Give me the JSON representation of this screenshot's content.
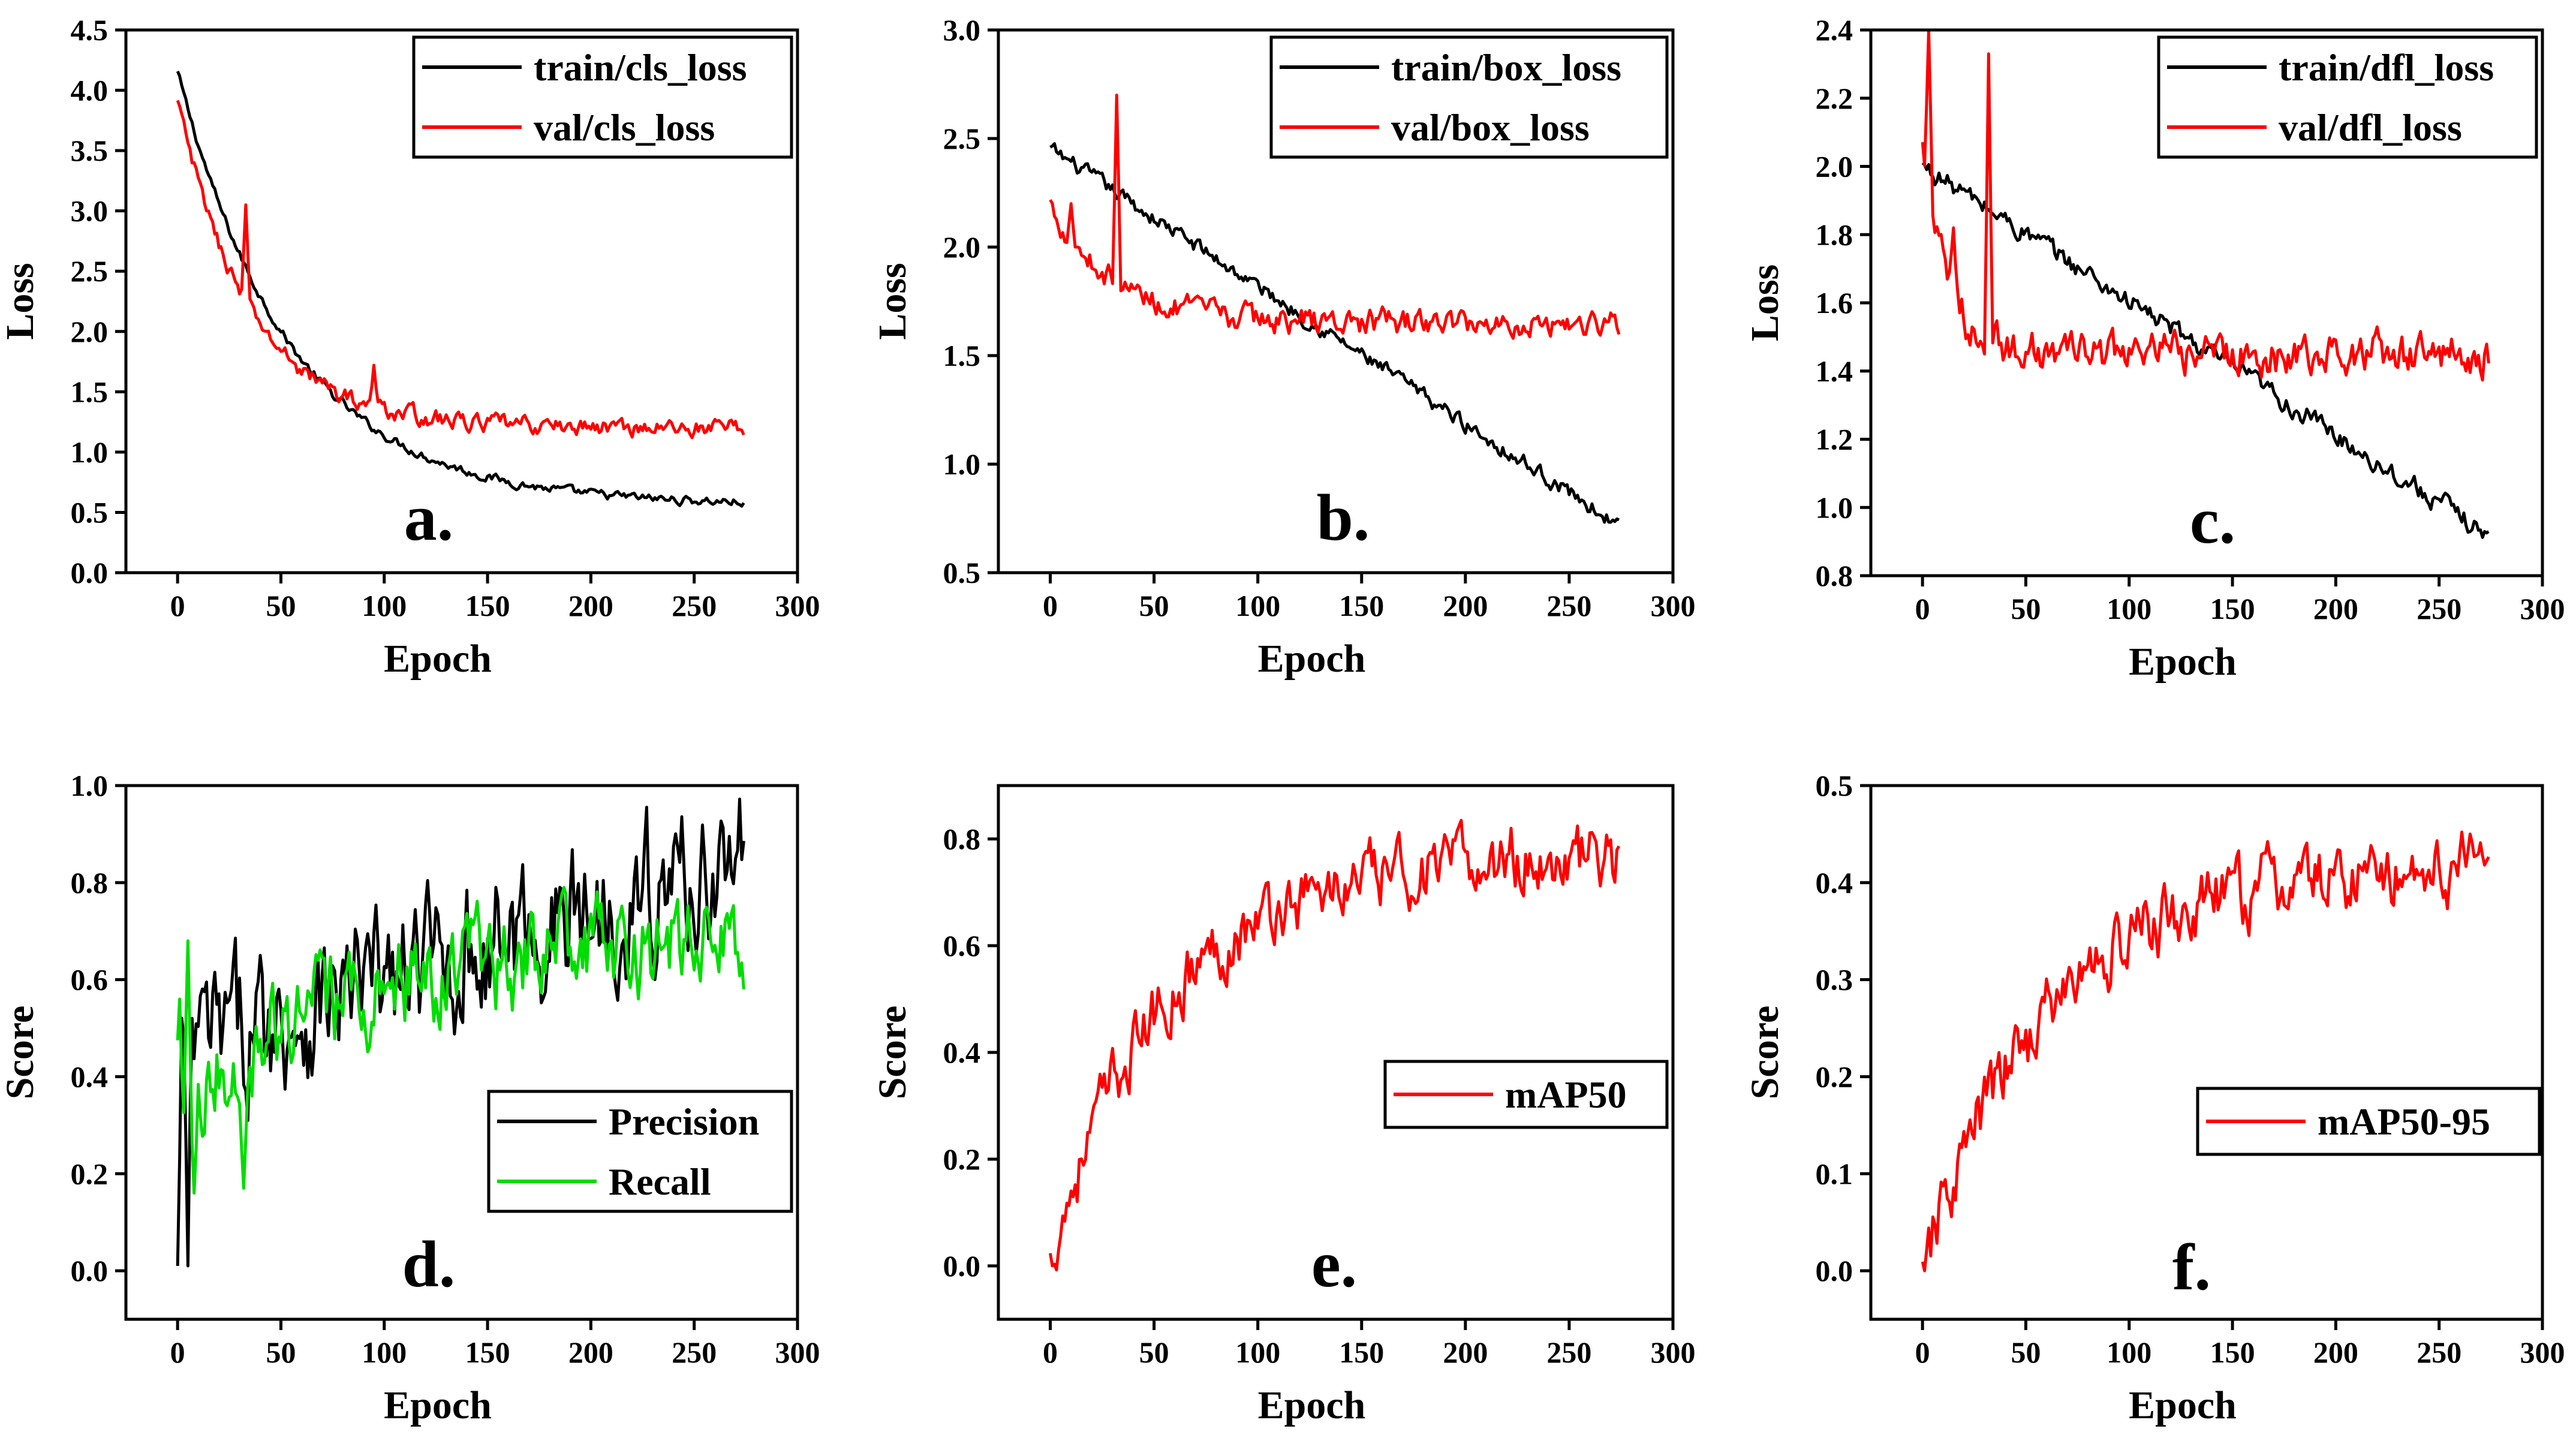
{
  "colors": {
    "train": "#000000",
    "val": "#ff0000",
    "recall": "#00dd00",
    "axis": "#000000",
    "background": "#ffffff"
  },
  "chart_data": [
    {
      "id": "a",
      "type": "line",
      "panel_label": "a.",
      "xlabel": "Epoch",
      "ylabel": "Loss",
      "xlim": [
        -25,
        300
      ],
      "ylim": [
        0.0,
        4.5
      ],
      "xticks": [
        0,
        50,
        100,
        150,
        200,
        250,
        300
      ],
      "yticks": [
        "0.0",
        "0.5",
        "1.0",
        "1.5",
        "2.0",
        "2.5",
        "3.0",
        "3.5",
        "4.0",
        "4.5"
      ],
      "legend_position": "top-right",
      "series": [
        {
          "name": "train/cls_loss",
          "color": "#000000",
          "start": 4.15,
          "end": 0.56,
          "tau": 55,
          "noise": 0.03,
          "spikes": [],
          "x_end": 274
        },
        {
          "name": "val/cls_loss",
          "color": "#ff0000",
          "start": 3.9,
          "end": 1.2,
          "tau": 35,
          "noise": 0.06,
          "spikes": [
            [
              15,
              3.0
            ],
            [
              33,
              3.05
            ],
            [
              95,
              1.72
            ]
          ],
          "x_end": 274
        }
      ]
    },
    {
      "id": "b",
      "type": "line",
      "panel_label": "b.",
      "xlabel": "Epoch",
      "ylabel": "Loss",
      "xlim": [
        -25,
        300
      ],
      "ylim": [
        0.5,
        3.0
      ],
      "xticks": [
        0,
        50,
        100,
        150,
        200,
        250,
        300
      ],
      "yticks": [
        "0.5",
        "1.0",
        "1.5",
        "2.0",
        "2.5",
        "3.0"
      ],
      "legend_position": "top-right",
      "series": [
        {
          "name": "train/box_loss",
          "color": "#000000",
          "start": 2.45,
          "end": 0.72,
          "tau": 0,
          "noise": 0.03,
          "spikes": [],
          "x_end": 274
        },
        {
          "name": "val/box_loss",
          "color": "#ff0000",
          "start": 2.2,
          "end": 1.65,
          "tau": 30,
          "noise": 0.05,
          "spikes": [
            [
              32,
              2.7
            ],
            [
              10,
              2.2
            ]
          ],
          "x_end": 274
        }
      ]
    },
    {
      "id": "c",
      "type": "line",
      "panel_label": "c.",
      "xlabel": "Epoch",
      "ylabel": "Loss",
      "xlim": [
        -25,
        300
      ],
      "ylim": [
        0.8,
        2.4
      ],
      "xticks": [
        0,
        50,
        100,
        150,
        200,
        250,
        300
      ],
      "yticks": [
        "0.8",
        "1.0",
        "1.2",
        "1.4",
        "1.6",
        "1.8",
        "2.0",
        "2.2",
        "2.4"
      ],
      "legend_position": "top-right",
      "series": [
        {
          "name": "train/dfl_loss",
          "color": "#000000",
          "start": 2.0,
          "end": 0.92,
          "tau": 0,
          "noise": 0.025,
          "spikes": [],
          "x_end": 274
        },
        {
          "name": "val/dfl_loss",
          "color": "#ff0000",
          "start": 2.05,
          "end": 1.45,
          "tau": 12,
          "noise": 0.05,
          "spikes": [
            [
              3,
              2.4
            ],
            [
              32,
              2.33
            ],
            [
              15,
              1.82
            ]
          ],
          "x_end": 274
        }
      ]
    },
    {
      "id": "d",
      "type": "line",
      "panel_label": "d.",
      "xlabel": "Epoch",
      "ylabel": "Score",
      "xlim": [
        -25,
        300
      ],
      "ylim": [
        -0.1,
        1.0
      ],
      "xticks": [
        0,
        50,
        100,
        150,
        200,
        250,
        300
      ],
      "yticks": [
        "0.0",
        "0.2",
        "0.4",
        "0.6",
        "0.8",
        "1.0"
      ],
      "legend_position": "bottom-right",
      "series": [
        {
          "name": "Precision",
          "color": "#000000",
          "start": 0.45,
          "end": 0.85,
          "tau": 0,
          "noise": 0.12,
          "spikes": [
            [
              0,
              0.01
            ],
            [
              5,
              0.01
            ]
          ],
          "x_end": 274
        },
        {
          "name": "Recall",
          "color": "#00dd00",
          "start": 0.35,
          "end": 0.69,
          "tau": 90,
          "noise": 0.08,
          "spikes": [
            [
              1,
              0.56
            ],
            [
              5,
              0.68
            ],
            [
              8,
              0.16
            ],
            [
              32,
              0.17
            ]
          ],
          "x_end": 274
        }
      ]
    },
    {
      "id": "e",
      "type": "line",
      "panel_label": "e.",
      "xlabel": "Epoch",
      "ylabel": "Score",
      "xlim": [
        -25,
        300
      ],
      "ylim": [
        -0.1,
        0.9
      ],
      "xticks": [
        0,
        50,
        100,
        150,
        200,
        250,
        300
      ],
      "yticks": [
        "0.0",
        "0.2",
        "0.4",
        "0.6",
        "0.8"
      ],
      "legend_position": "center-right",
      "series": [
        {
          "name": "mAP50",
          "color": "#ff0000",
          "start": 0.02,
          "end": 0.77,
          "tau": 55,
          "noise": 0.05,
          "spikes": [
            [
              1,
              0.0
            ],
            [
              222,
              0.82
            ]
          ],
          "x_end": 274
        }
      ]
    },
    {
      "id": "f",
      "type": "line",
      "panel_label": "f.",
      "xlabel": "Epoch",
      "ylabel": "Score",
      "xlim": [
        -25,
        300
      ],
      "ylim": [
        -0.05,
        0.5
      ],
      "xticks": [
        0,
        50,
        100,
        150,
        200,
        250,
        300
      ],
      "yticks": [
        "0.0",
        "0.1",
        "0.2",
        "0.3",
        "0.4",
        "0.5"
      ],
      "legend_position": "center-right",
      "series": [
        {
          "name": "mAP50-95",
          "color": "#ff0000",
          "start": 0.0,
          "end": 0.42,
          "tau": 60,
          "noise": 0.03,
          "spikes": [
            [
              1,
              0.0
            ],
            [
              225,
              0.43
            ]
          ],
          "x_end": 274
        }
      ]
    }
  ]
}
